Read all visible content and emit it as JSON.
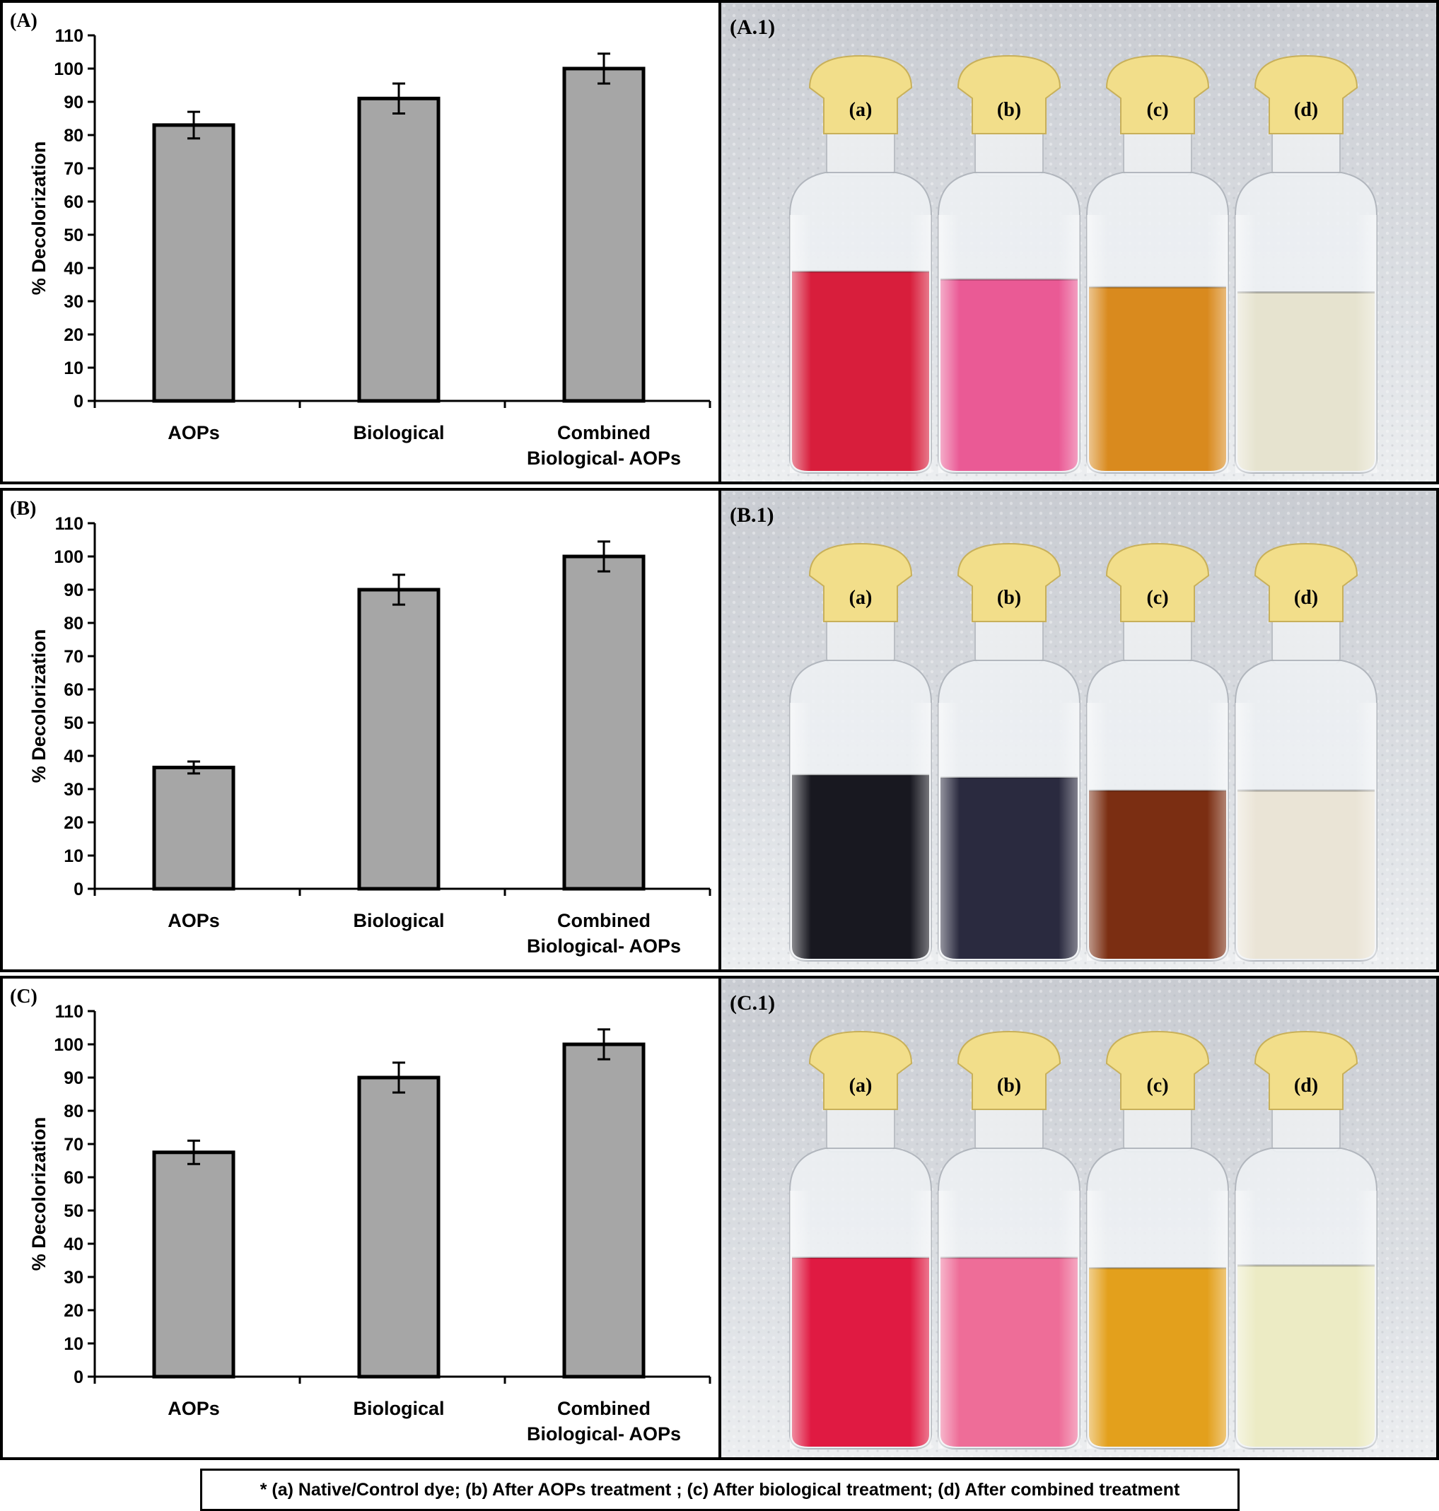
{
  "caption": "* (a) Native/Control dye; (b) After AOPs treatment ; (c) After biological treatment; (d) After combined treatment",
  "colors": {
    "bar_fill": "#a6a6a6",
    "bar_stroke": "#000000",
    "background_photo": "#d9dcdf"
  },
  "chart_data": [
    {
      "type": "bar",
      "panel_label": "(A)",
      "categories": [
        "AOPs",
        "Biological",
        [
          "Combined",
          "Biological- AOPs"
        ]
      ],
      "values": [
        83,
        91,
        100
      ],
      "error": [
        4,
        4.5,
        4.5
      ],
      "ylabel": "% Decolorization",
      "xlabel": "",
      "ylim": [
        0,
        110
      ],
      "yticks": [
        "0",
        "10",
        "20",
        "30",
        "40",
        "50",
        "60",
        "70",
        "80",
        "90",
        "100",
        "110"
      ]
    },
    {
      "type": "bar",
      "panel_label": "(B)",
      "categories": [
        "AOPs",
        "Biological",
        [
          "Combined",
          "Biological- AOPs"
        ]
      ],
      "values": [
        36.5,
        90,
        100
      ],
      "error": [
        1.8,
        4.5,
        4.5
      ],
      "ylabel": "% Decolorization",
      "xlabel": "",
      "ylim": [
        0,
        110
      ],
      "yticks": [
        "0",
        "10",
        "20",
        "30",
        "40",
        "50",
        "60",
        "70",
        "80",
        "90",
        "100",
        "110"
      ]
    },
    {
      "type": "bar",
      "panel_label": "(C)",
      "categories": [
        "AOPs",
        "Biological",
        [
          "Combined",
          "Biological- AOPs"
        ]
      ],
      "values": [
        67.5,
        90,
        100
      ],
      "error": [
        3.5,
        4.5,
        4.5
      ],
      "ylabel": "% Decolorization",
      "xlabel": "",
      "ylim": [
        0,
        110
      ],
      "yticks": [
        "0",
        "10",
        "20",
        "30",
        "40",
        "50",
        "60",
        "70",
        "80",
        "90",
        "100",
        "110"
      ]
    }
  ],
  "photos": [
    {
      "panel_label": "(A.1)",
      "bottles": [
        {
          "label": "(a)",
          "liquid": "#d81e3c",
          "fill_level": 0.78
        },
        {
          "label": "(b)",
          "liquid": "#ea5a95",
          "fill_level": 0.75
        },
        {
          "label": "(c)",
          "liquid": "#d98a1e",
          "fill_level": 0.72
        },
        {
          "label": "(d)",
          "liquid": "#e6e3cf",
          "fill_level": 0.7
        }
      ]
    },
    {
      "panel_label": "(B.1)",
      "bottles": [
        {
          "label": "(a)",
          "liquid": "#181820",
          "fill_level": 0.72
        },
        {
          "label": "(b)",
          "liquid": "#2a2a3f",
          "fill_level": 0.71
        },
        {
          "label": "(c)",
          "liquid": "#7b2e12",
          "fill_level": 0.66
        },
        {
          "label": "(d)",
          "liquid": "#eae4d6",
          "fill_level": 0.66
        }
      ]
    },
    {
      "panel_label": "(C.1)",
      "bottles": [
        {
          "label": "(a)",
          "liquid": "#e01a42",
          "fill_level": 0.74
        },
        {
          "label": "(b)",
          "liquid": "#ee6d98",
          "fill_level": 0.74
        },
        {
          "label": "(c)",
          "liquid": "#e3a01c",
          "fill_level": 0.7
        },
        {
          "label": "(d)",
          "liquid": "#ecebc4",
          "fill_level": 0.71
        }
      ]
    }
  ]
}
